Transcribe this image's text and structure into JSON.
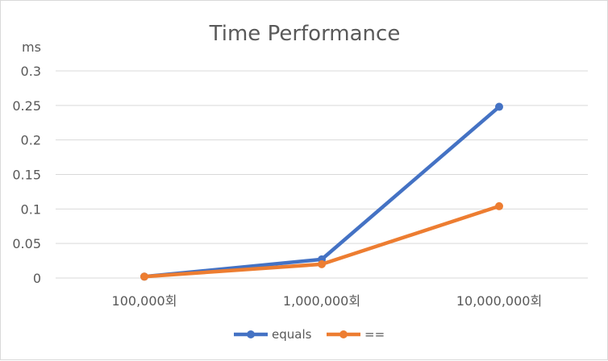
{
  "chart_data": {
    "type": "line",
    "title": "Time Performance",
    "ylabel": "ms",
    "xlabel": "",
    "categories": [
      "100,000회",
      "1,000,000회",
      "10,000,000회"
    ],
    "yticks": [
      "0",
      "0.05",
      "0.1",
      "0.15",
      "0.2",
      "0.25",
      "0.3"
    ],
    "ylim": [
      0,
      0.3
    ],
    "grid": true,
    "legend_position": "bottom",
    "series": [
      {
        "name": "equals",
        "color": "#4472C4",
        "values": [
          0.002,
          0.027,
          0.248
        ]
      },
      {
        "name": "==",
        "color": "#ED7D31",
        "values": [
          0.002,
          0.02,
          0.104
        ]
      }
    ]
  }
}
